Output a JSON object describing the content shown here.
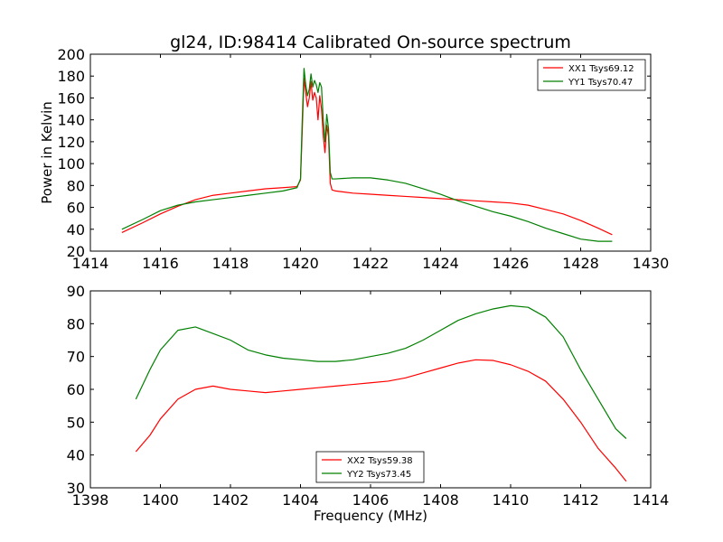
{
  "figure": {
    "title": "gl24, ID:98414 Calibrated On-source spectrum",
    "xlabel": "Frequency (MHz)",
    "background": "#ffffff"
  },
  "chart_data": [
    {
      "type": "line",
      "title": "gl24, ID:98414 Calibrated On-source spectrum",
      "xlabel": "",
      "ylabel": "Power in Kelvin",
      "xlim": [
        1414,
        1430
      ],
      "ylim": [
        20,
        200
      ],
      "xticks": [
        1414,
        1416,
        1418,
        1420,
        1422,
        1424,
        1426,
        1428,
        1430
      ],
      "yticks": [
        20,
        40,
        60,
        80,
        100,
        120,
        140,
        160,
        180,
        200
      ],
      "grid": false,
      "legend": "top-right",
      "series": [
        {
          "name": "XX1 Tsys69.12",
          "color": "#ff0000",
          "x": [
            1414.9,
            1415.5,
            1416.0,
            1416.5,
            1417.0,
            1417.5,
            1418.0,
            1418.5,
            1419.0,
            1419.5,
            1419.9,
            1420.0,
            1420.05,
            1420.1,
            1420.15,
            1420.2,
            1420.25,
            1420.3,
            1420.35,
            1420.4,
            1420.45,
            1420.5,
            1420.55,
            1420.6,
            1420.65,
            1420.7,
            1420.75,
            1420.8,
            1420.85,
            1420.9,
            1421.0,
            1421.5,
            1422.0,
            1422.5,
            1423.0,
            1423.5,
            1424.0,
            1424.5,
            1425.0,
            1425.5,
            1426.0,
            1426.5,
            1427.0,
            1427.5,
            1428.0,
            1428.5,
            1428.9
          ],
          "y": [
            37,
            46,
            54,
            61,
            67,
            71,
            73,
            75,
            77,
            78,
            79,
            85,
            130,
            178,
            165,
            152,
            160,
            175,
            158,
            165,
            160,
            140,
            162,
            150,
            125,
            110,
            135,
            125,
            82,
            76,
            75,
            73,
            72,
            71,
            70,
            69,
            68,
            67,
            66,
            65,
            64,
            62,
            58,
            54,
            48,
            41,
            35
          ]
        },
        {
          "name": "YY1 Tsys70.47",
          "color": "#008000",
          "x": [
            1414.9,
            1415.5,
            1416.0,
            1416.5,
            1417.0,
            1417.5,
            1418.0,
            1418.5,
            1419.0,
            1419.5,
            1419.9,
            1420.0,
            1420.05,
            1420.1,
            1420.15,
            1420.2,
            1420.25,
            1420.3,
            1420.35,
            1420.4,
            1420.45,
            1420.5,
            1420.55,
            1420.6,
            1420.65,
            1420.7,
            1420.75,
            1420.8,
            1420.85,
            1420.9,
            1421.0,
            1421.5,
            1422.0,
            1422.5,
            1423.0,
            1423.5,
            1424.0,
            1424.5,
            1425.0,
            1425.5,
            1426.0,
            1426.5,
            1427.0,
            1427.5,
            1428.0,
            1428.5,
            1428.9
          ],
          "y": [
            40,
            49,
            57,
            62,
            65,
            67,
            69,
            71,
            73,
            75,
            78,
            86,
            140,
            187,
            172,
            162,
            168,
            182,
            170,
            176,
            172,
            165,
            174,
            170,
            140,
            120,
            145,
            132,
            92,
            86,
            86,
            87,
            87,
            85,
            82,
            77,
            72,
            66,
            61,
            56,
            52,
            47,
            41,
            36,
            31,
            29,
            29
          ]
        }
      ]
    },
    {
      "type": "line",
      "title": "",
      "xlabel": "Frequency (MHz)",
      "ylabel": "",
      "xlim": [
        1398,
        1414
      ],
      "ylim": [
        30,
        90
      ],
      "xticks": [
        1398,
        1400,
        1402,
        1404,
        1406,
        1408,
        1410,
        1412,
        1414
      ],
      "yticks": [
        30,
        40,
        50,
        60,
        70,
        80,
        90
      ],
      "grid": false,
      "legend": "bottom-center",
      "series": [
        {
          "name": "XX2 Tsys59.38",
          "color": "#ff0000",
          "x": [
            1399.3,
            1399.7,
            1400.0,
            1400.5,
            1401.0,
            1401.5,
            1402.0,
            1402.5,
            1403.0,
            1403.5,
            1404.0,
            1404.5,
            1405.0,
            1405.5,
            1406.0,
            1406.5,
            1407.0,
            1407.5,
            1408.0,
            1408.5,
            1409.0,
            1409.5,
            1410.0,
            1410.5,
            1411.0,
            1411.5,
            1412.0,
            1412.5,
            1413.0,
            1413.3
          ],
          "y": [
            41,
            46,
            51,
            57,
            60,
            61,
            60,
            59.5,
            59,
            59.5,
            60,
            60.5,
            61,
            61.5,
            62,
            62.5,
            63.5,
            65,
            66.5,
            68,
            69,
            68.8,
            67.5,
            65.5,
            62.5,
            57,
            50,
            42,
            36,
            32
          ]
        },
        {
          "name": "YY2 Tsys73.45",
          "color": "#008000",
          "x": [
            1399.3,
            1399.7,
            1400.0,
            1400.5,
            1401.0,
            1401.5,
            1402.0,
            1402.5,
            1403.0,
            1403.5,
            1404.0,
            1404.5,
            1405.0,
            1405.5,
            1406.0,
            1406.5,
            1407.0,
            1407.5,
            1408.0,
            1408.5,
            1409.0,
            1409.5,
            1410.0,
            1410.5,
            1411.0,
            1411.5,
            1412.0,
            1412.5,
            1413.0,
            1413.3
          ],
          "y": [
            57,
            66,
            72,
            78,
            79,
            77,
            75,
            72,
            70.5,
            69.5,
            69,
            68.5,
            68.5,
            69,
            70,
            71,
            72.5,
            75,
            78,
            81,
            83,
            84.5,
            85.5,
            85,
            82,
            76,
            66,
            57,
            48,
            45
          ]
        }
      ]
    }
  ]
}
